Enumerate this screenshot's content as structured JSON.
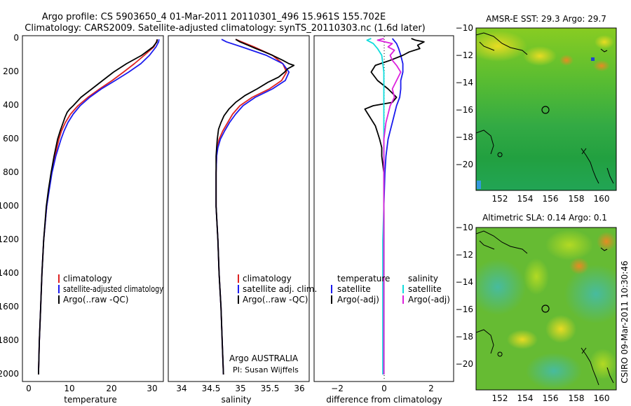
{
  "title": {
    "line1": "Argo profile: CS 5903650_4 01-Mar-2011 20110301_496 15.961S 155.702E",
    "line2": "Climatology: CARS2009. Satellite-adjusted climatology: synTS_20110303.nc (1.6d later)"
  },
  "side_label": "CSIRO 09-Mar-2011 10:30:46",
  "colors": {
    "climatology": "#dd2222",
    "satellite": "#1a1aee",
    "argo": "#000000",
    "sat_sal": "#11dddd",
    "argo_sal": "#dd22dd"
  },
  "chart_data": [
    {
      "id": "temperature",
      "type": "line",
      "xlabel": "temperature",
      "xlim": [
        -1.5,
        31
      ],
      "ylim": [
        2050,
        0
      ],
      "xticks": [
        0,
        10,
        20,
        30
      ],
      "yticks": [
        0,
        200,
        400,
        600,
        800,
        1000,
        1200,
        1400,
        1600,
        1800,
        2000
      ],
      "legend": [
        "climatology",
        "satellite-adjusted climatology",
        "Argo(..raw -QC)"
      ],
      "legend_position": "lower-center",
      "series": [
        {
          "name": "climatology",
          "color": "climatology",
          "y": [
            5,
            20,
            50,
            100,
            150,
            200,
            250,
            300,
            350,
            400,
            450,
            500,
            550,
            600,
            700,
            800,
            900,
            1000,
            1200,
            1400,
            1600,
            1800,
            2000
          ],
          "x": [
            29.6,
            29.4,
            28.8,
            26.6,
            24.3,
            21.8,
            19.2,
            16.3,
            13.6,
            11.3,
            9.6,
            8.4,
            7.5,
            6.9,
            6.0,
            5.2,
            4.6,
            4.1,
            3.4,
            3.0,
            2.7,
            2.4,
            2.2
          ]
        },
        {
          "name": "satellite-adjusted climatology",
          "color": "satellite",
          "y": [
            5,
            20,
            50,
            100,
            150,
            200,
            250,
            300,
            350,
            400,
            450,
            500,
            550,
            600,
            700,
            800,
            900,
            1000,
            1200,
            1400,
            1600,
            1800,
            2000
          ],
          "x": [
            30.0,
            29.9,
            29.3,
            27.8,
            25.8,
            23.0,
            19.9,
            16.7,
            14.0,
            11.8,
            10.2,
            9.0,
            8.1,
            7.4,
            6.2,
            5.3,
            4.7,
            4.1,
            3.4,
            3.0,
            2.7,
            2.4,
            2.2
          ]
        },
        {
          "name": "Argo(..raw -QC)",
          "color": "argo",
          "y": [
            5,
            20,
            50,
            100,
            150,
            200,
            250,
            300,
            350,
            400,
            420,
            440,
            470,
            500,
            550,
            600,
            700,
            800,
            900,
            1000,
            1200,
            1400,
            1600,
            1800,
            2000
          ],
          "x": [
            29.6,
            29.5,
            28.6,
            26.0,
            22.5,
            19.5,
            17.0,
            14.5,
            12.0,
            10.2,
            9.4,
            8.8,
            8.3,
            7.9,
            7.2,
            6.6,
            5.8,
            5.1,
            4.5,
            4.0,
            3.4,
            3.0,
            2.7,
            2.4,
            2.2
          ]
        }
      ]
    },
    {
      "id": "salinity",
      "type": "line",
      "xlabel": "salinity",
      "xlim": [
        33.75,
        36.05
      ],
      "ylim": [
        2050,
        0
      ],
      "xticks": [
        34,
        34.5,
        35,
        35.5,
        36
      ],
      "yticks": [
        0,
        200,
        400,
        600,
        800,
        1000,
        1200,
        1400,
        1600,
        1800,
        2000
      ],
      "legend": [
        "climatology",
        "satellite adj. clim.",
        "Argo(..raw -QC)"
      ],
      "legend_position": "lower-right",
      "annotation": [
        "Argo AUSTRALIA",
        "PI: Susan Wijffels"
      ],
      "series": [
        {
          "name": "climatology",
          "color": "climatology",
          "y": [
            5,
            20,
            50,
            100,
            150,
            200,
            250,
            300,
            350,
            400,
            450,
            500,
            550,
            600,
            650,
            700,
            800,
            1000,
            1200,
            1400,
            1600,
            1800,
            2000
          ],
          "x": [
            34.85,
            34.95,
            35.15,
            35.45,
            35.62,
            35.68,
            35.6,
            35.4,
            35.12,
            34.92,
            34.8,
            34.72,
            34.64,
            34.58,
            34.55,
            34.54,
            34.53,
            34.53,
            34.56,
            34.58,
            34.61,
            34.63,
            34.65
          ]
        },
        {
          "name": "satellite adj. clim.",
          "color": "satellite",
          "y": [
            5,
            20,
            50,
            100,
            150,
            200,
            250,
            300,
            350,
            400,
            450,
            500,
            550,
            600,
            650,
            700,
            800,
            1000,
            1200,
            1400,
            1600,
            1800,
            2000
          ],
          "x": [
            34.62,
            34.7,
            34.95,
            35.35,
            35.62,
            35.72,
            35.66,
            35.45,
            35.17,
            34.97,
            34.85,
            34.75,
            34.67,
            34.6,
            34.56,
            34.54,
            34.53,
            34.53,
            34.56,
            34.58,
            34.61,
            34.63,
            34.65
          ]
        },
        {
          "name": "Argo(..raw -QC)",
          "color": "argo",
          "y": [
            5,
            20,
            40,
            60,
            80,
            100,
            130,
            150,
            160,
            180,
            200,
            230,
            260,
            300,
            340,
            380,
            420,
            460,
            500,
            540,
            600,
            650,
            700,
            800,
            1000,
            1200,
            1400,
            1600,
            1800,
            2000
          ],
          "x": [
            34.85,
            34.92,
            35.05,
            35.18,
            35.32,
            35.45,
            35.62,
            35.72,
            35.8,
            35.7,
            35.65,
            35.55,
            35.38,
            35.2,
            35.0,
            34.85,
            34.74,
            34.66,
            34.61,
            34.57,
            34.55,
            34.54,
            34.53,
            34.53,
            34.53,
            34.56,
            34.58,
            34.61,
            34.63,
            34.65
          ]
        }
      ]
    },
    {
      "id": "difference",
      "type": "line",
      "xlabel": "difference from climatology",
      "xlim": [
        -3.3,
        3.3
      ],
      "ylim": [
        2050,
        0
      ],
      "xticks": [
        -2,
        0,
        2
      ],
      "yticks": [
        0,
        200,
        400,
        600,
        800,
        1000,
        1200,
        1400,
        1600,
        1800,
        2000
      ],
      "legend_groups": [
        {
          "title": "temperature",
          "items": [
            "satellite",
            "Argo(-adj)"
          ]
        },
        {
          "title": "salinity",
          "items": [
            "satellite",
            "Argo(-adj)"
          ]
        }
      ],
      "legend_position": "middle",
      "zero_line": "dotted",
      "series": [
        {
          "name": "temperature satellite",
          "color": "satellite",
          "y": [
            0,
            30,
            60,
            100,
            150,
            200,
            250,
            300,
            350,
            400,
            450,
            500,
            550,
            600,
            700,
            800,
            1000,
            1200,
            1500,
            2000
          ],
          "x": [
            0.4,
            0.6,
            0.7,
            0.8,
            0.9,
            0.9,
            0.8,
            0.8,
            0.75,
            0.6,
            0.5,
            0.4,
            0.3,
            0.2,
            0.1,
            0.05,
            0.0,
            0.0,
            0.0,
            0.0
          ]
        },
        {
          "name": "temperature Argo(-adj)",
          "color": "argo",
          "y": [
            0,
            10,
            20,
            40,
            60,
            80,
            100,
            130,
            160,
            200,
            250,
            300,
            350,
            380,
            400,
            420,
            440,
            460,
            480,
            500,
            520,
            560,
            600,
            650,
            700,
            800,
            900,
            1000,
            1200,
            1500,
            2000
          ],
          "x": [
            1.3,
            1.5,
            1.9,
            1.6,
            1.7,
            1.2,
            0.9,
            0.3,
            -0.4,
            -0.6,
            -0.3,
            0.2,
            0.6,
            0.4,
            -0.5,
            -0.9,
            -0.8,
            -0.7,
            -0.6,
            -0.5,
            -0.4,
            -0.3,
            -0.2,
            -0.1,
            -0.1,
            0.0,
            0.0,
            0.0,
            0.0,
            0.0,
            0.0
          ]
        },
        {
          "name": "salinity satellite",
          "color": "sat_sal",
          "y": [
            0,
            10,
            30,
            60,
            100,
            150,
            200,
            300,
            400,
            600,
            800,
            1000,
            1200,
            1400,
            1600,
            1800,
            2000
          ],
          "x": [
            -0.6,
            -0.8,
            -0.5,
            -0.3,
            -0.1,
            -0.05,
            0.0,
            0.0,
            0.0,
            0.0,
            0.0,
            0.0,
            -0.05,
            -0.05,
            -0.05,
            -0.05,
            -0.05
          ]
        },
        {
          "name": "salinity Argo(-adj)",
          "color": "argo_sal",
          "y": [
            0,
            10,
            30,
            50,
            70,
            100,
            130,
            160,
            200,
            250,
            300,
            350,
            400,
            450,
            500,
            550,
            600,
            700,
            800,
            1000,
            2000
          ],
          "x": [
            0.0,
            -0.3,
            0.4,
            0.2,
            0.5,
            0.3,
            0.4,
            0.6,
            0.8,
            0.6,
            0.4,
            0.5,
            0.3,
            0.2,
            0.1,
            0.05,
            0.0,
            0.0,
            0.0,
            0.0,
            0.0
          ]
        }
      ]
    },
    {
      "id": "sst-map",
      "type": "heatmap",
      "title": "AMSR-E SST: 29.3 Argo: 29.7",
      "xlim": [
        150.3,
        161.2
      ],
      "ylim": [
        -22,
        -10
      ],
      "xticks": [
        152,
        154,
        156,
        158,
        160
      ],
      "yticks": [
        -10,
        -12,
        -14,
        -16,
        -18,
        -20
      ],
      "marker": {
        "lon": 155.7,
        "lat": -16.0
      }
    },
    {
      "id": "sla-map",
      "type": "heatmap",
      "title": "Altimetric SLA: 0.14 Argo: 0.1",
      "xlim": [
        150.3,
        161.2
      ],
      "ylim": [
        -22,
        -10
      ],
      "xticks": [
        152,
        154,
        156,
        158,
        160
      ],
      "yticks": [
        -10,
        -12,
        -14,
        -16,
        -18,
        -20
      ],
      "marker": {
        "lon": 155.7,
        "lat": -16.0
      }
    }
  ]
}
